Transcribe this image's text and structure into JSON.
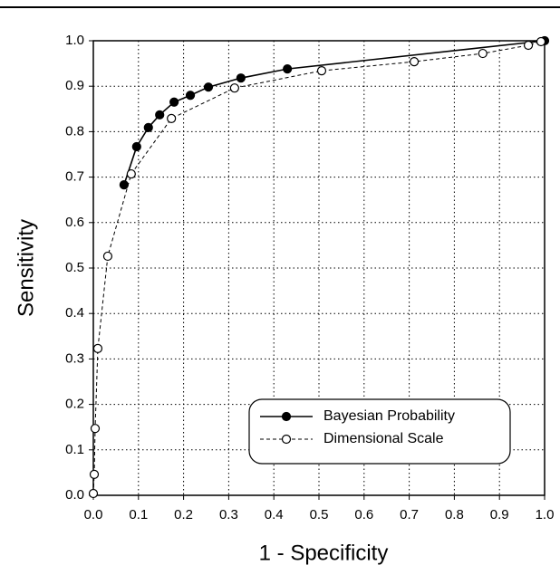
{
  "chart_data": {
    "type": "line",
    "xlabel": "1 - Specificity",
    "ylabel": "Sensitivity",
    "xlim": [
      0,
      1
    ],
    "ylim": [
      0,
      1
    ],
    "xticks": [
      {
        "value": 0,
        "label": "0.0"
      },
      0.1,
      0.2,
      0.3,
      0.4,
      0.5,
      0.6,
      0.7,
      0.8,
      0.9,
      {
        "value": 1,
        "label": "1.0"
      }
    ],
    "yticks": [
      {
        "value": 0,
        "label": "0.0"
      },
      0.1,
      0.2,
      0.3,
      0.4,
      0.5,
      0.6,
      0.7,
      0.8,
      0.9,
      {
        "value": 1,
        "label": "1.0"
      }
    ],
    "grid": true,
    "legend": "lower right",
    "series": [
      {
        "name": "Bayesian Probability",
        "color": "#000000",
        "marker": "filled",
        "dash": "solid",
        "x": [
          0.068,
          0.096,
          0.122,
          0.147,
          0.179,
          0.215,
          0.255,
          0.327,
          0.43,
          1.0
        ],
        "values": [
          0.683,
          0.767,
          0.809,
          0.837,
          0.865,
          0.88,
          0.898,
          0.918,
          0.938,
          1.0
        ]
      },
      {
        "name": "Dimensional Scale",
        "color": "#000000",
        "marker": "open",
        "dash": "dashed",
        "x": [
          0.0,
          0.002,
          0.004,
          0.01,
          0.032,
          0.084,
          0.173,
          0.313,
          0.506,
          0.711,
          0.863,
          0.964,
          0.992
        ],
        "values": [
          0.004,
          0.046,
          0.147,
          0.323,
          0.526,
          0.707,
          0.829,
          0.896,
          0.934,
          0.954,
          0.972,
          0.99,
          0.998
        ]
      }
    ]
  }
}
